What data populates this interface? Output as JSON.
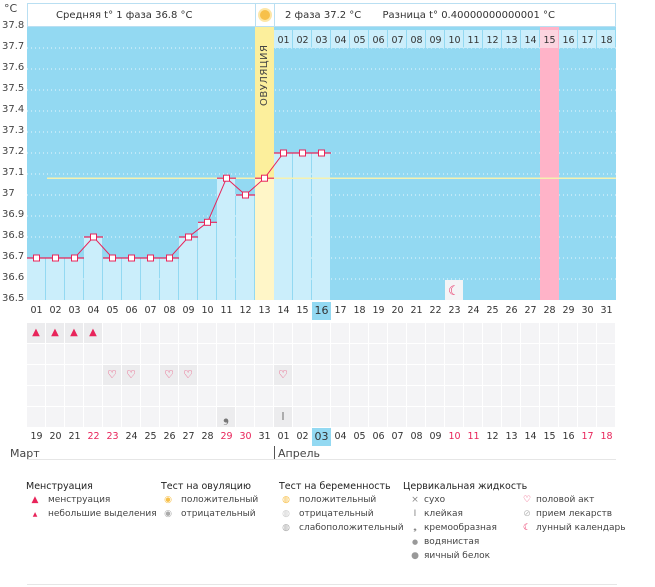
{
  "header": {
    "unit": "°C",
    "phase1": "Средняя t° 1 фаза  36.8 °C",
    "phase2": "2 фаза  37.2 °C",
    "diff": "Разница t°  0.40000000000001 °C",
    "ovulation": "ОВУЛЯЦИЯ"
  },
  "colors": {
    "plot_bg": "#93d9f2",
    "bar": "#cbeefb",
    "ovulation": "#fcef9c",
    "marked_day": "#ffb3c8",
    "line": "#e8245a",
    "coverline": "#f5f1b0",
    "today": "#93d9f2"
  },
  "chart_data": {
    "type": "line",
    "ylim": [
      36.5,
      37.8
    ],
    "yticks": [
      "37.8",
      "37.7",
      "37.6",
      "37.5",
      "37.4",
      "37.3",
      "37.2",
      "37.1",
      "37",
      "36.9",
      "36.8",
      "36.7",
      "36.6",
      "36.5"
    ],
    "cycle_days": [
      "01",
      "02",
      "03",
      "04",
      "05",
      "06",
      "07",
      "08",
      "09",
      "10",
      "11",
      "12",
      "13",
      "14",
      "15",
      "16",
      "17",
      "18",
      "19",
      "20",
      "21",
      "22",
      "23",
      "24",
      "25",
      "26",
      "27",
      "28",
      "29",
      "30",
      "31"
    ],
    "temperatures": [
      36.7,
      36.7,
      36.7,
      36.8,
      36.7,
      36.7,
      36.7,
      36.7,
      36.8,
      36.87,
      37.08,
      37.0,
      37.08,
      37.2,
      37.2,
      37.2
    ],
    "coverline": 37.08,
    "ovulation_day": 13,
    "today_day": 16,
    "phase2_days": [
      "01",
      "02",
      "03",
      "04",
      "05",
      "06",
      "07",
      "08",
      "09",
      "10",
      "11",
      "12",
      "13",
      "14",
      "15",
      "16",
      "17",
      "18"
    ],
    "highlight_phase2_day": "15",
    "moon_day": 23,
    "dates": [
      "19",
      "20",
      "21",
      "22",
      "23",
      "24",
      "25",
      "26",
      "27",
      "28",
      "29",
      "30",
      "31",
      "01",
      "02",
      "03",
      "04",
      "05",
      "06",
      "07",
      "08",
      "09",
      "10",
      "11",
      "12",
      "13",
      "14",
      "15",
      "16",
      "17",
      "18"
    ],
    "weekend_dates_idx": [
      3,
      4,
      10,
      11,
      22,
      23,
      29,
      30
    ],
    "months": [
      "Март",
      "Апрель"
    ],
    "menstruation_days": [
      1,
      2,
      3,
      4
    ],
    "intercourse_days": [
      5,
      6,
      8,
      9,
      14
    ],
    "cervical": [
      {
        "day": 11,
        "type": "creamy"
      },
      {
        "day": 14,
        "type": "sticky"
      }
    ]
  },
  "legend": {
    "menstruation": {
      "title": "Менструация",
      "items": [
        "менструация",
        "небольшие выделения"
      ]
    },
    "ovulation_test": {
      "title": "Тест на овуляцию",
      "items": [
        "положительный",
        "отрицательный"
      ]
    },
    "pregnancy_test": {
      "title": "Тест на беременность",
      "items": [
        "положительный",
        "отрицательный",
        "слабоположительный"
      ]
    },
    "cervical": {
      "title": "Цервикальная жидкость",
      "items": [
        "сухо",
        "клейкая",
        "кремообразная",
        "водянистая",
        "яичный белок"
      ]
    },
    "other": {
      "items": [
        "половой акт",
        "прием лекарств",
        "лунный календарь"
      ]
    }
  }
}
